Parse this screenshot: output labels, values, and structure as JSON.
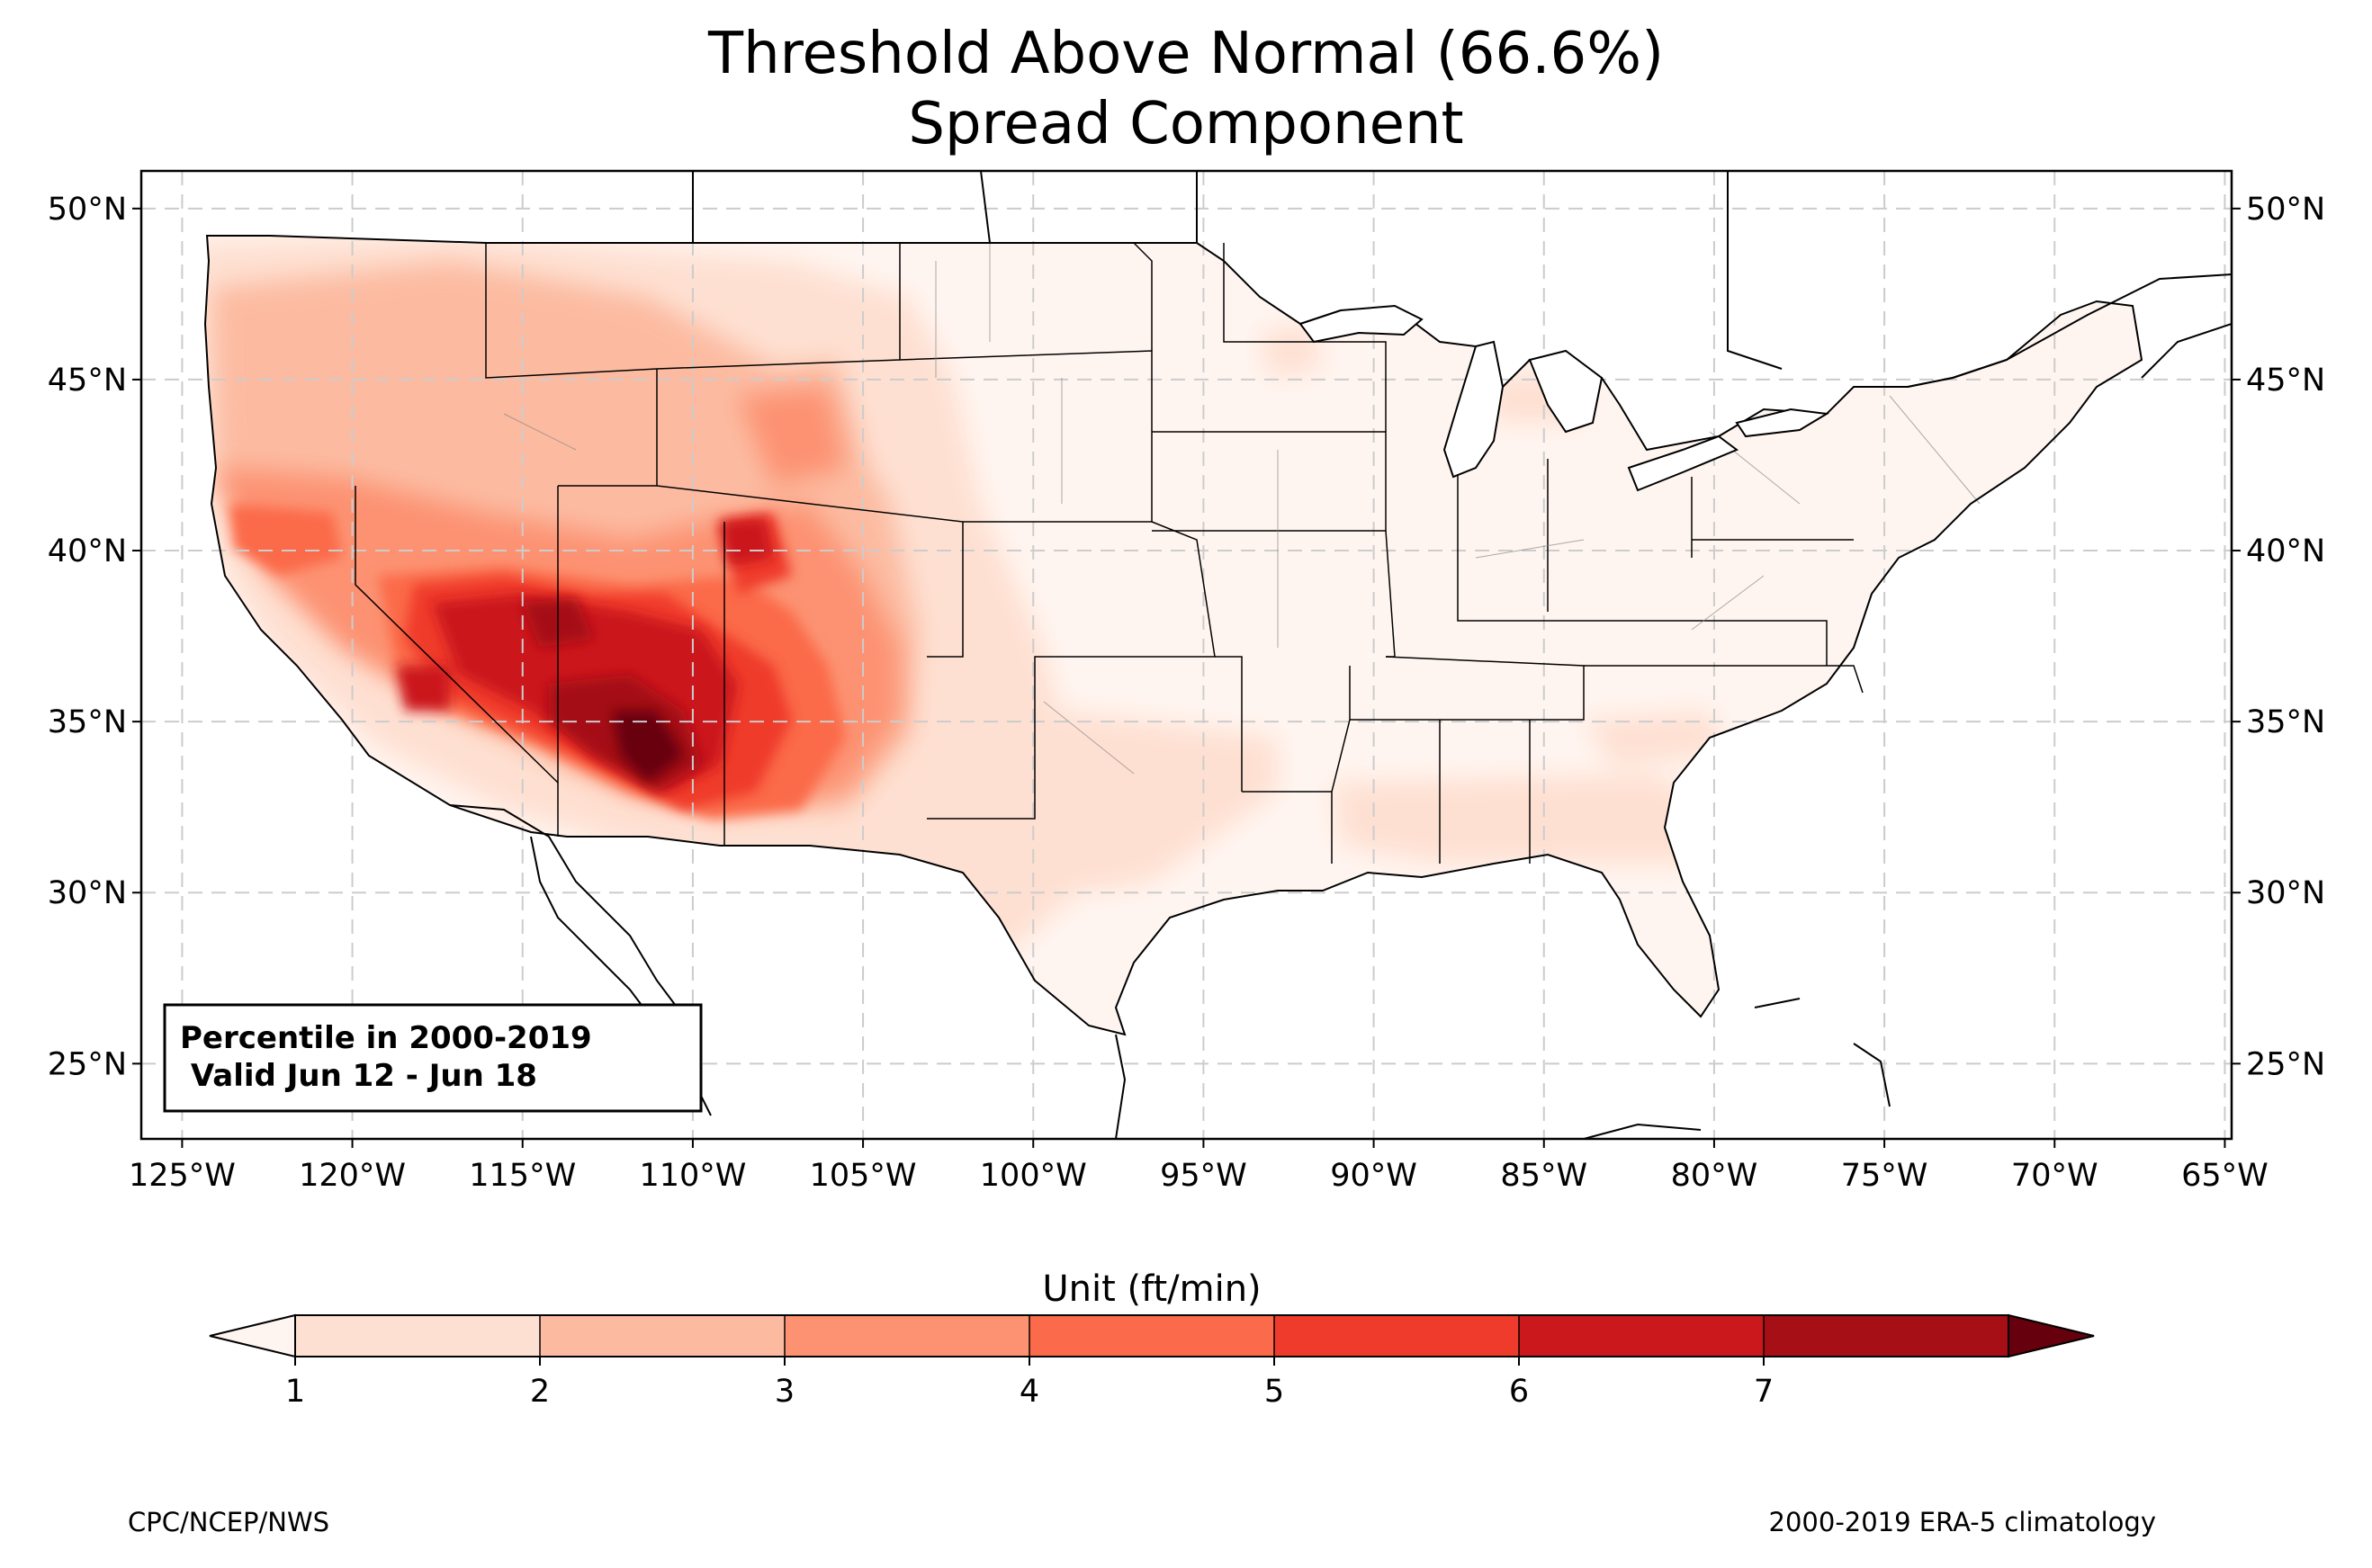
{
  "title_line1": "Threshold Above Normal (66.6%)",
  "title_line2": "Spread Component",
  "info_box": {
    "line1": "Percentile in 2000-2019",
    "line2": " Valid Jun 12 - Jun 18"
  },
  "colorbar": {
    "label": "Unit (ft/min)",
    "ticks": [
      "1",
      "2",
      "3",
      "4",
      "5",
      "6",
      "7"
    ],
    "colors": [
      "#fee0d2",
      "#fcbba1",
      "#fc9272",
      "#fb6a4a",
      "#ef3b2c",
      "#cb181d",
      "#a50f15"
    ],
    "under_color": "#fff5f0",
    "over_color": "#67000d"
  },
  "axes": {
    "lon_ticks": [
      "125°W",
      "120°W",
      "115°W",
      "110°W",
      "105°W",
      "100°W",
      "95°W",
      "90°W",
      "85°W",
      "80°W",
      "75°W",
      "70°W",
      "65°W"
    ],
    "lat_ticks": [
      "25°N",
      "30°N",
      "35°N",
      "40°N",
      "45°N",
      "50°N"
    ],
    "lon_values": [
      -125,
      -120,
      -115,
      -110,
      -105,
      -100,
      -95,
      -90,
      -85,
      -80,
      -75,
      -70,
      -65
    ],
    "lat_values": [
      25,
      30,
      35,
      40,
      45,
      50
    ],
    "lon_range": [
      -126.2,
      -64.8
    ],
    "lat_range": [
      22.8,
      51.1
    ],
    "grid": true
  },
  "footer": {
    "left": "CPC/NCEP/NWS",
    "right": "2000-2019 ERA-5 climatology"
  }
}
